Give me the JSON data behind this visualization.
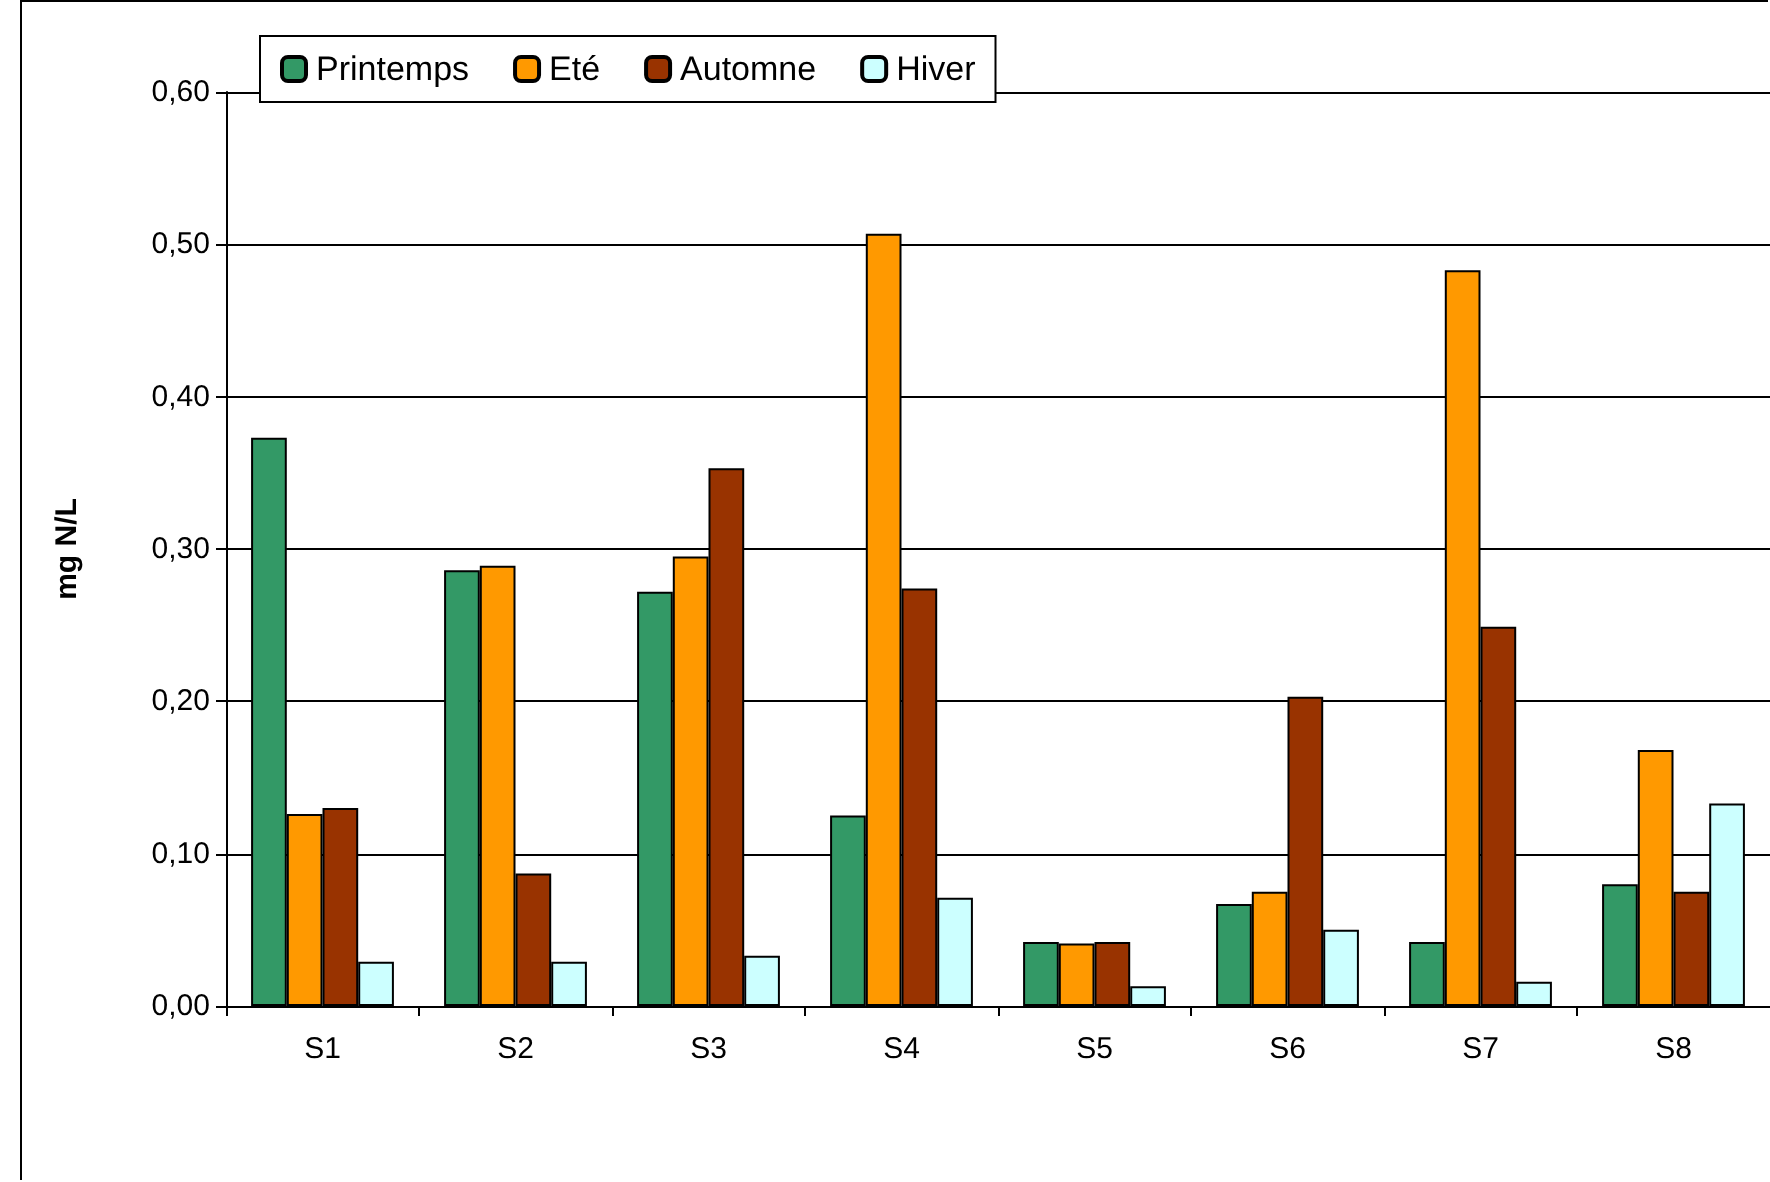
{
  "chart_data": {
    "type": "bar",
    "ylabel": "mg N/L",
    "categories": [
      "S1",
      "S2",
      "S3",
      "S4",
      "S5",
      "S6",
      "S7",
      "S8"
    ],
    "series": [
      {
        "name": "Printemps",
        "color": "#339966",
        "values": [
          0.373,
          0.286,
          0.272,
          0.125,
          0.042,
          0.067,
          0.042,
          0.08
        ]
      },
      {
        "name": "Eté",
        "color": "#ff9900",
        "values": [
          0.126,
          0.289,
          0.295,
          0.507,
          0.041,
          0.075,
          0.483,
          0.168
        ]
      },
      {
        "name": "Automne",
        "color": "#993300",
        "values": [
          0.13,
          0.087,
          0.353,
          0.274,
          0.042,
          0.203,
          0.249,
          0.075
        ]
      },
      {
        "name": "Hiver",
        "color": "#ccffff",
        "values": [
          0.029,
          0.029,
          0.033,
          0.071,
          0.013,
          0.05,
          0.016,
          0.133
        ]
      }
    ],
    "ylim": [
      0,
      0.6
    ],
    "yticks": [
      {
        "value": 0,
        "label": "0,00"
      },
      {
        "value": 0.1,
        "label": "0,10"
      },
      {
        "value": 0.2,
        "label": "0,20"
      },
      {
        "value": 0.3,
        "label": "0,30"
      },
      {
        "value": 0.4,
        "label": "0,40"
      },
      {
        "value": 0.5,
        "label": "0,50"
      },
      {
        "value": 0.6,
        "label": "0,60"
      }
    ],
    "grid": "y",
    "legend": "top left"
  }
}
